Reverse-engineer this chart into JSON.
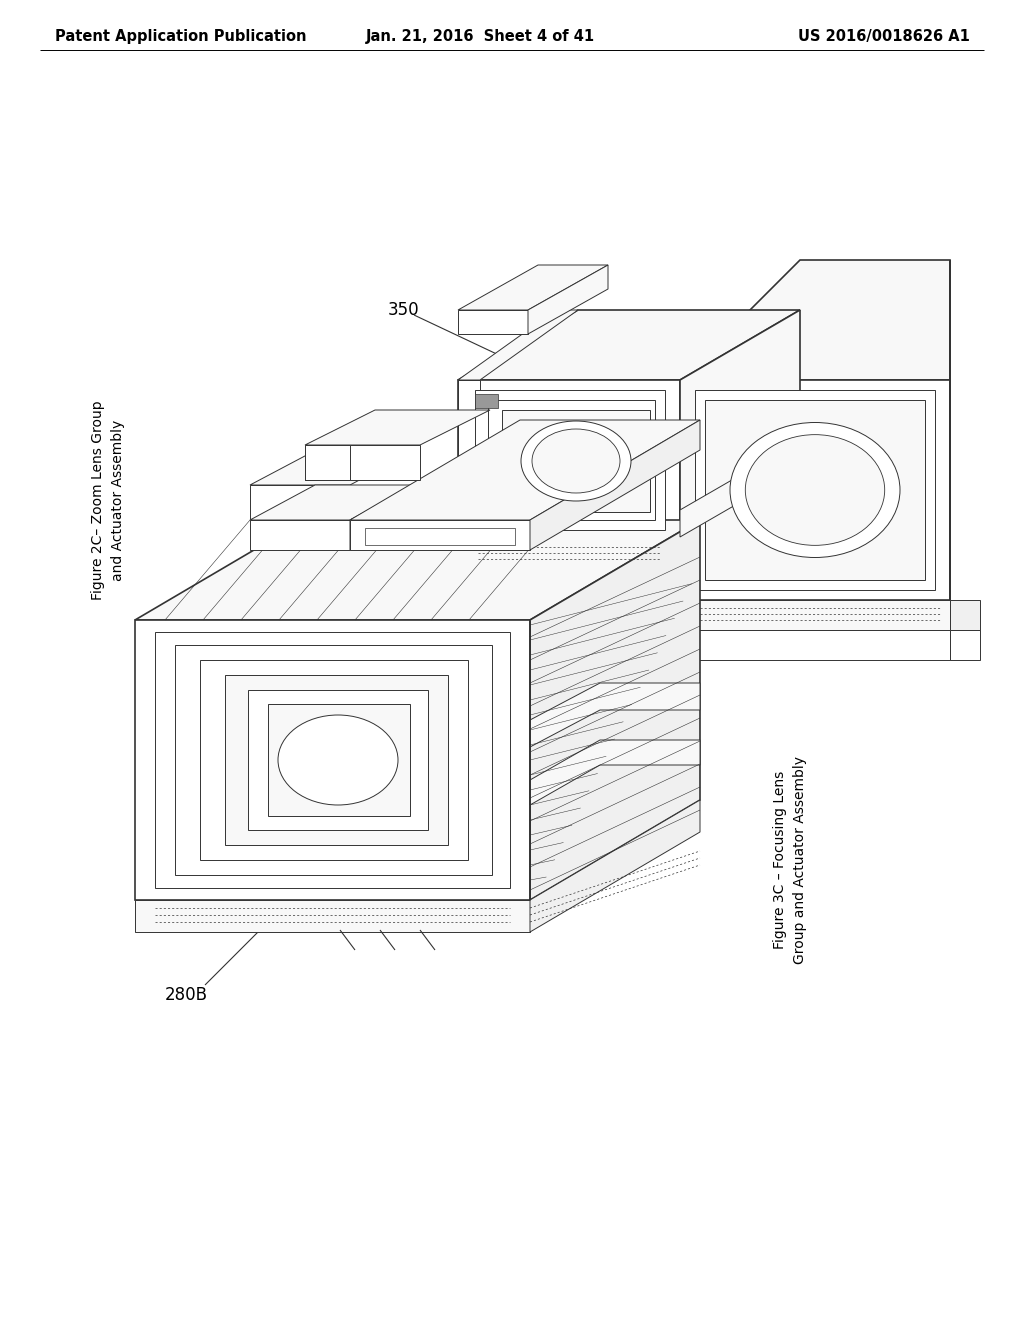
{
  "background_color": "#ffffff",
  "header_left": "Patent Application Publication",
  "header_center": "Jan. 21, 2016  Sheet 4 of 41",
  "header_right": "US 2016/0018626 A1",
  "fig2c_label": "Figure 2C– Zoom Lens Group\nand Actuator Assembly",
  "fig3c_label": "Figure 3C – Focusing Lens\nGroup and Actuator Assembly",
  "ref_350": "350",
  "ref_280b": "280B",
  "line_color": "#333333",
  "lw_main": 1.2,
  "lw_thin": 0.7,
  "lw_dot": 0.5,
  "face_white": "#ffffff",
  "face_light": "#f8f8f8",
  "face_mid": "#f0f0f0"
}
